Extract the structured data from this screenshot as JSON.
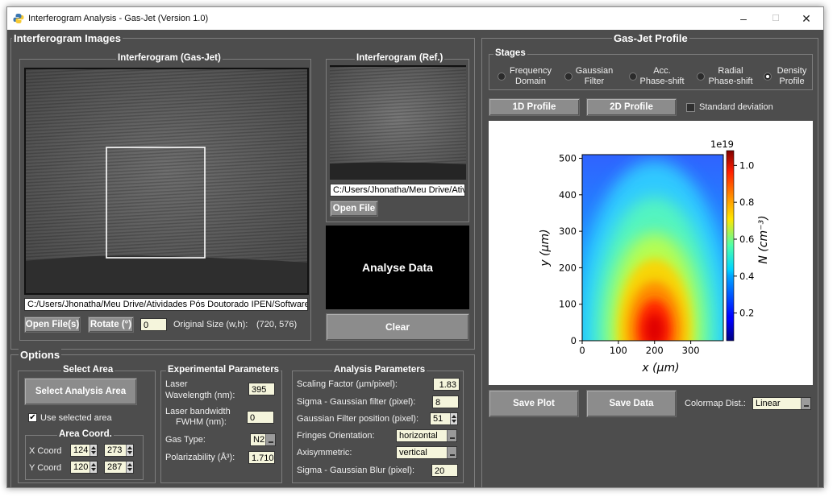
{
  "window": {
    "title": "Interferogram Analysis - Gas-Jet (Version 1.0)",
    "minimize": "–",
    "maximize": "☐",
    "close": "✕"
  },
  "images": {
    "section_title": "Interferogram Images",
    "gasjet_title": "Interferogram (Gas-Jet)",
    "gasjet_path": "C:/Users/Jhonatha/Meu Drive/Atividades Pós Doutorado IPEN/Softwares -",
    "open_files": "Open File(s)",
    "rotate": "Rotate (°)",
    "rotate_value": "0",
    "original_size_label": "Original Size (w,h):",
    "original_size_value": "(720, 576)",
    "ref_title": "Interferogram (Ref.)",
    "ref_path": "C:/Users/Jhonatha/Meu Drive/Ativid",
    "open_file": "Open File",
    "analyse": "Analyse Data",
    "clear": "Clear"
  },
  "options": {
    "section_title": "Options",
    "select_area": {
      "title": "Select Area",
      "button": "Select Analysis Area",
      "use_selected": "Use selected area",
      "coord_title": "Area Coord.",
      "x_label": "X Coord",
      "x1": "124",
      "x2": "273",
      "y_label": "Y Coord",
      "y1": "120",
      "y2": "287"
    },
    "experimental": {
      "title": "Experimental Parameters",
      "laser_wl_label1": "Laser",
      "laser_wl_label2": "Wavelength (nm):",
      "laser_wl_value": "395",
      "bandwidth_label1": "Laser bandwidth",
      "bandwidth_label2": "FWHM  (nm):",
      "bandwidth_value": "0",
      "gas_type_label": "Gas Type:",
      "gas_type_value": "N2",
      "polarizability_label": "Polarizability (Å³):",
      "polarizability_value": "1.710"
    },
    "analysis": {
      "title": "Analysis Parameters",
      "scaling_label": "Scaling Factor (µm/pixel):",
      "scaling_value": "1.83",
      "sigma_filter_label": "Sigma - Gaussian filter (pixel):",
      "sigma_filter_value": "8",
      "filter_pos_label": "Gaussian Filter position (pixel):",
      "filter_pos_value": "51",
      "fringes_label": "Fringes Orientation:",
      "fringes_value": "horizontal",
      "axisym_label": "Axisymmetric:",
      "axisym_value": "vertical",
      "blur_label": "Sigma - Gaussian Blur (pixel):",
      "blur_value": "20"
    }
  },
  "profile": {
    "section_title": "Gas-Jet Profile",
    "stages_title": "Stages",
    "stages": [
      {
        "l1": "Frequency",
        "l2": "Domain",
        "selected": false
      },
      {
        "l1": "Gaussian",
        "l2": "Filter",
        "selected": false
      },
      {
        "l1": "Acc.",
        "l2": "Phase-shift",
        "selected": false
      },
      {
        "l1": "Radial",
        "l2": "Phase-shift",
        "selected": false
      },
      {
        "l1": "Density",
        "l2": "Profile",
        "selected": true
      }
    ],
    "btn_1d": "1D Profile",
    "btn_2d": "2D Profile",
    "std_dev": "Standard deviation",
    "save_plot": "Save Plot",
    "save_data": "Save Data",
    "cmap_label": "Colormap Dist.:",
    "cmap_value": "Linear"
  },
  "chart_data": {
    "type": "heatmap",
    "title": "",
    "xlabel": "x (µm)",
    "ylabel": "y (µm)",
    "colorbar_label": "N (cm⁻³)",
    "colorbar_scale": "1e19",
    "colormap": "jet",
    "xlim": [
      0,
      390
    ],
    "ylim": [
      0,
      510
    ],
    "xticks": [
      0,
      100,
      200,
      300
    ],
    "yticks": [
      0,
      100,
      200,
      300,
      400,
      500
    ],
    "cticks": [
      0.2,
      0.4,
      0.6,
      0.8,
      1.0
    ],
    "clim": [
      0.05,
      1.08
    ],
    "peak": {
      "x": 200,
      "y": 30,
      "value": 1.08
    }
  }
}
